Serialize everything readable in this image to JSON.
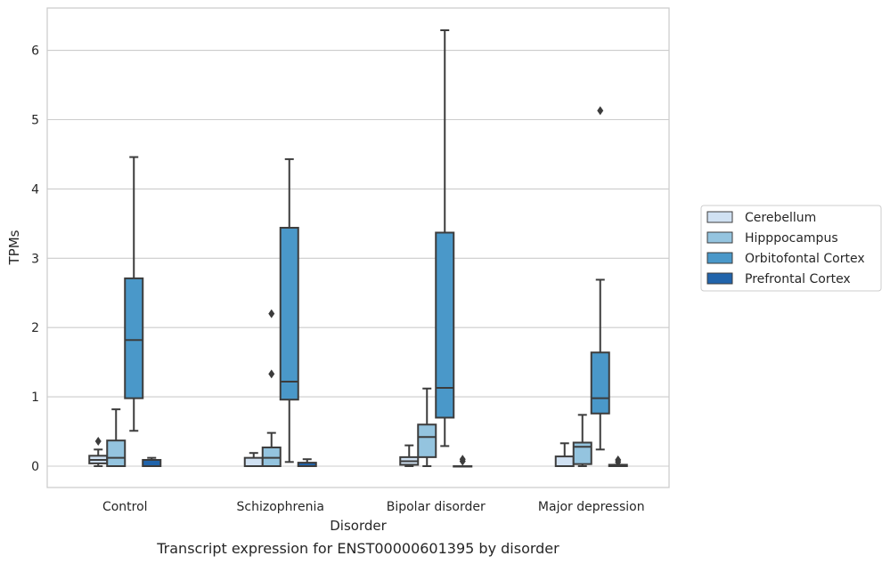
{
  "chart_data": {
    "type": "box",
    "xlabel": "Disorder",
    "ylabel": "TPMs",
    "caption": "Transcript expression for ENST00000601395 by disorder",
    "categories": [
      "Control",
      "Schizophrenia",
      "Bipolar disorder",
      "Major depression"
    ],
    "y_ticks": [
      "0",
      "1",
      "2",
      "3",
      "4",
      "5",
      "6"
    ],
    "ylim": [
      -0.3,
      6.6
    ],
    "grid": "horizontal",
    "legend_position": "right",
    "series": [
      {
        "name": "Cerebellum",
        "color": "#d0e1f2",
        "boxes": [
          {
            "whislo": 0.0,
            "q1": 0.04,
            "med": 0.09,
            "q3": 0.15,
            "whishi": 0.24,
            "fliers": [
              0.36
            ]
          },
          {
            "whislo": 0.0,
            "q1": 0.0,
            "med": 0.0,
            "q3": 0.12,
            "whishi": 0.19,
            "fliers": []
          },
          {
            "whislo": 0.0,
            "q1": 0.02,
            "med": 0.07,
            "q3": 0.13,
            "whishi": 0.3,
            "fliers": []
          },
          {
            "whislo": 0.0,
            "q1": 0.0,
            "med": 0.0,
            "q3": 0.14,
            "whishi": 0.33,
            "fliers": []
          }
        ]
      },
      {
        "name": "Hipppocampus",
        "color": "#94c4df",
        "boxes": [
          {
            "whislo": 0.0,
            "q1": 0.0,
            "med": 0.12,
            "q3": 0.37,
            "whishi": 0.82,
            "fliers": []
          },
          {
            "whislo": 0.0,
            "q1": 0.0,
            "med": 0.12,
            "q3": 0.27,
            "whishi": 0.48,
            "fliers": [
              1.33,
              2.2
            ]
          },
          {
            "whislo": 0.0,
            "q1": 0.13,
            "med": 0.42,
            "q3": 0.6,
            "whishi": 1.12,
            "fliers": []
          },
          {
            "whislo": 0.0,
            "q1": 0.03,
            "med": 0.28,
            "q3": 0.34,
            "whishi": 0.74,
            "fliers": []
          }
        ]
      },
      {
        "name": "Orbitofontal Cortex",
        "color": "#4a98c9",
        "boxes": [
          {
            "whislo": 0.51,
            "q1": 0.98,
            "med": 1.82,
            "q3": 2.71,
            "whishi": 4.46,
            "fliers": []
          },
          {
            "whislo": 0.06,
            "q1": 0.96,
            "med": 1.22,
            "q3": 3.44,
            "whishi": 4.43,
            "fliers": []
          },
          {
            "whislo": 0.29,
            "q1": 0.7,
            "med": 1.13,
            "q3": 3.37,
            "whishi": 6.29,
            "fliers": []
          },
          {
            "whislo": 0.24,
            "q1": 0.76,
            "med": 0.98,
            "q3": 1.64,
            "whishi": 2.69,
            "fliers": [
              5.13
            ]
          }
        ]
      },
      {
        "name": "Prefrontal Cortex",
        "color": "#2164ab",
        "boxes": [
          {
            "whislo": 0.0,
            "q1": 0.0,
            "med": 0.0,
            "q3": 0.09,
            "whishi": 0.12,
            "fliers": []
          },
          {
            "whislo": 0.0,
            "q1": 0.0,
            "med": 0.0,
            "q3": 0.05,
            "whishi": 0.1,
            "fliers": []
          },
          {
            "whislo": 0.0,
            "q1": 0.0,
            "med": 0.0,
            "q3": 0.0,
            "whishi": 0.0,
            "fliers": [
              0.07,
              0.1
            ]
          },
          {
            "whislo": 0.0,
            "q1": 0.0,
            "med": 0.0,
            "q3": 0.02,
            "whishi": 0.02,
            "fliers": [
              0.06,
              0.09
            ]
          }
        ]
      }
    ]
  },
  "colors": {
    "box_edge": "#3c3c3c",
    "grid": "#cccccc",
    "frame": "#cccccc",
    "text": "#262626"
  }
}
